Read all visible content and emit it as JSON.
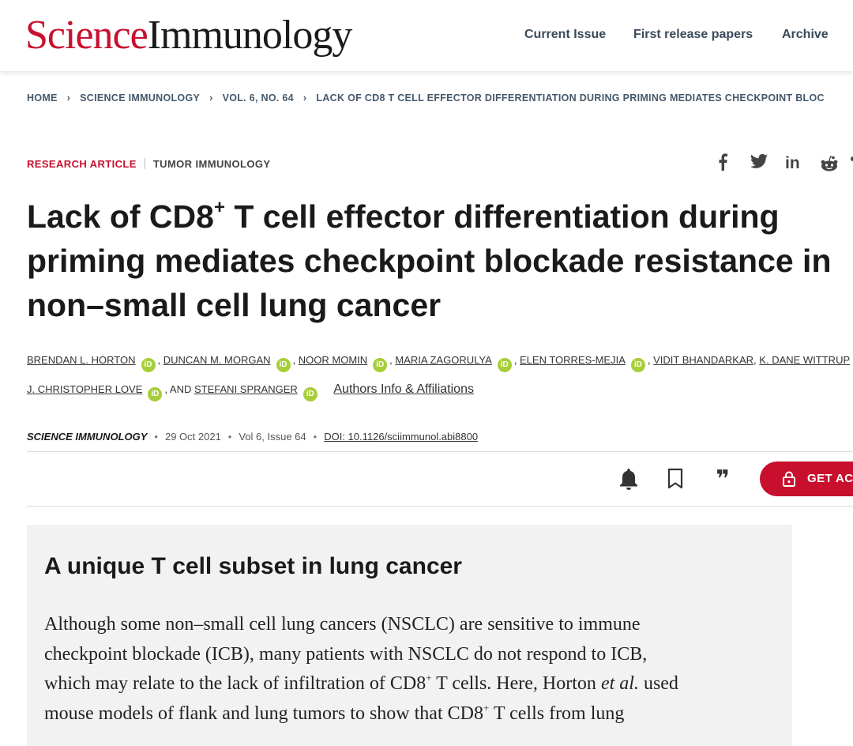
{
  "header": {
    "logo_science": "Science",
    "logo_immunology": "Immunology",
    "nav": [
      "Current Issue",
      "First release papers",
      "Archive"
    ]
  },
  "breadcrumb": [
    "HOME",
    "SCIENCE IMMUNOLOGY",
    "VOL. 6, NO. 64",
    "LACK OF CD8 T CELL EFFECTOR DIFFERENTIATION DURING PRIMING MEDIATES CHECKPOINT BLOC"
  ],
  "article_type": {
    "type": "RESEARCH ARTICLE",
    "topic": "TUMOR IMMUNOLOGY"
  },
  "social": [
    "f",
    "y",
    "in",
    "reddit",
    "more"
  ],
  "title": {
    "l1a": "Lack of CD8",
    "l1sup": "+",
    "l1b": " T cell effector differentiation during",
    "l2": "priming mediates checkpoint blockade resistance in",
    "l3": "non–small cell lung cancer"
  },
  "authors": {
    "row1": [
      {
        "name": "BRENDAN L. HORTON",
        "orcid": true
      },
      {
        "name": "DUNCAN M. MORGAN",
        "orcid": true
      },
      {
        "name": "NOOR MOMIN",
        "orcid": true
      },
      {
        "name": "MARIA ZAGORULYA",
        "orcid": true
      },
      {
        "name": "ELEN TORRES-MEJIA",
        "orcid": true
      },
      {
        "name": "VIDIT BHANDARKAR",
        "orcid": false
      },
      {
        "name": "K. DANE WITTRUP",
        "orcid": false
      }
    ],
    "row2": [
      {
        "name": "J. CHRISTOPHER LOVE",
        "orcid": true
      },
      {
        "name": "STEFANI SPRANGER",
        "orcid": true
      }
    ],
    "comma": ",",
    "and": ", AND",
    "orcid_label": "iD",
    "affil_link": "Authors Info & Affiliations"
  },
  "meta": {
    "journal": "SCIENCE IMMUNOLOGY",
    "date": "29 Oct 2021",
    "volume": "Vol 6, Issue 64",
    "doi": "DOI: 10.1126/sciimmunol.abi8800",
    "sep": "•"
  },
  "actions": {
    "icons": [
      "bell-icon",
      "bookmark-icon",
      "quote-icon"
    ],
    "quote_glyph": "❞",
    "get_access": "GET AC"
  },
  "summary": {
    "heading": "A unique T cell subset in lung cancer",
    "l1": "Although some non–small cell lung cancers (NSCLC) are sensitive to immune",
    "l2": "checkpoint blockade (ICB), many patients with NSCLC do not respond to ICB,",
    "l3a": "which may relate to the lack of infiltration of CD8",
    "l3sup": "+",
    "l3b": " T cells. Here, Horton ",
    "l3em": "et al.",
    "l3c": " used",
    "l4a": "mouse models of flank and lung tumors to show that CD8",
    "l4sup": "+",
    "l4b": " T cells from lung"
  },
  "colors": {
    "brand_red": "#c8102e",
    "link_blue": "#1a5ec2",
    "orcid_green": "#a6ce39",
    "summary_bg": "#f2f2f2"
  }
}
